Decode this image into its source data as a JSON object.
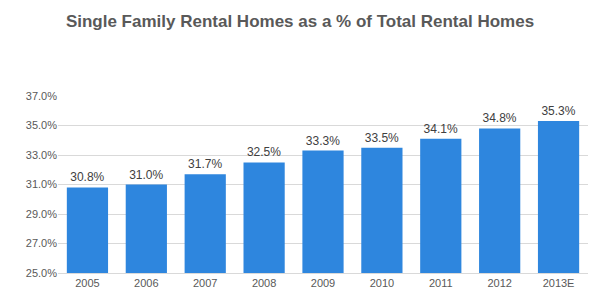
{
  "chart_data": {
    "type": "bar",
    "title": "Single Family Rental Homes as a % of Total Rental Homes",
    "categories": [
      "2005",
      "2006",
      "2007",
      "2008",
      "2009",
      "2010",
      "2011",
      "2012",
      "2013E"
    ],
    "values": [
      30.8,
      31.0,
      31.7,
      32.5,
      33.3,
      33.5,
      34.1,
      34.8,
      35.3
    ],
    "value_labels": [
      "30.8%",
      "31.0%",
      "31.7%",
      "32.5%",
      "33.3%",
      "33.5%",
      "34.1%",
      "34.8%",
      "35.3%"
    ],
    "data_labels": true,
    "color": "#2e86de",
    "ylim": [
      25,
      37
    ],
    "yticks": [
      {
        "value": 25,
        "label": "25.0%"
      },
      {
        "value": 27,
        "label": "27.0%"
      },
      {
        "value": 29,
        "label": "29.0%"
      },
      {
        "value": 31,
        "label": "31.0%"
      },
      {
        "value": 33,
        "label": "33.0%"
      },
      {
        "value": 35,
        "label": "35.0%"
      },
      {
        "value": 37,
        "label": "37.0%"
      }
    ],
    "grid": true
  }
}
